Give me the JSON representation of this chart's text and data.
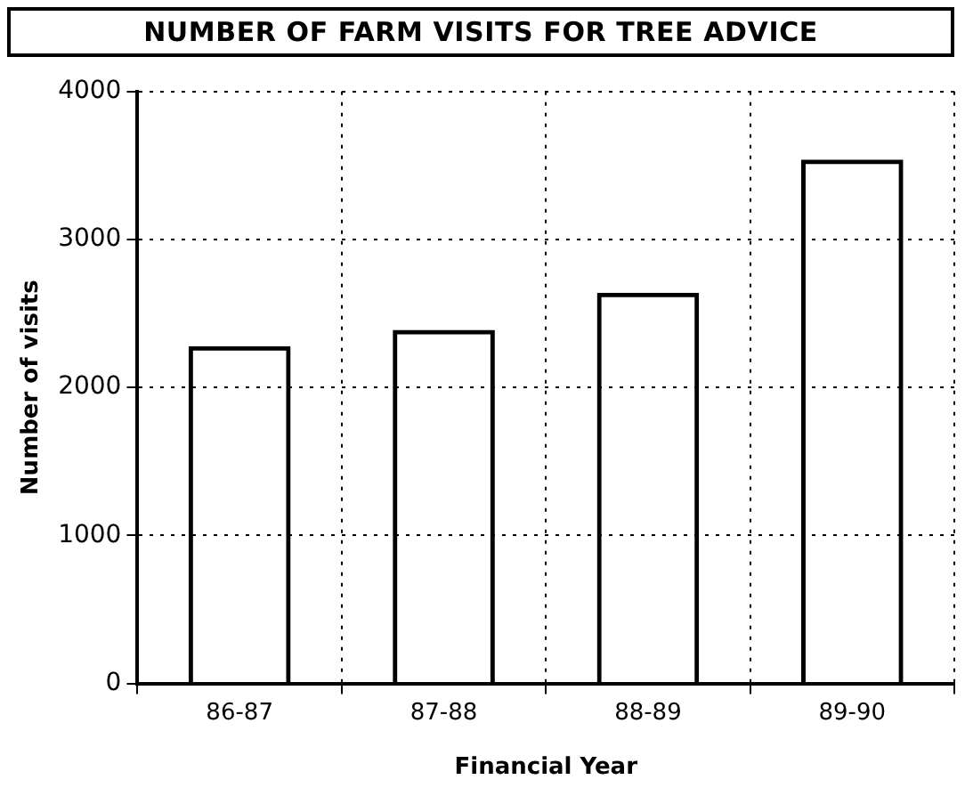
{
  "chart_data": {
    "type": "bar",
    "title": "NUMBER OF FARM VISITS FOR TREE ADVICE",
    "xlabel": "Financial Year",
    "ylabel": "Number of visits",
    "categories": [
      "86-87",
      "87-88",
      "88-89",
      "89-90"
    ],
    "values": [
      2280,
      2390,
      2640,
      3540
    ],
    "color": "#000000",
    "ylim": [
      0,
      4000
    ],
    "yticks": [
      0,
      1000,
      2000,
      3000,
      4000
    ],
    "grid": true
  }
}
